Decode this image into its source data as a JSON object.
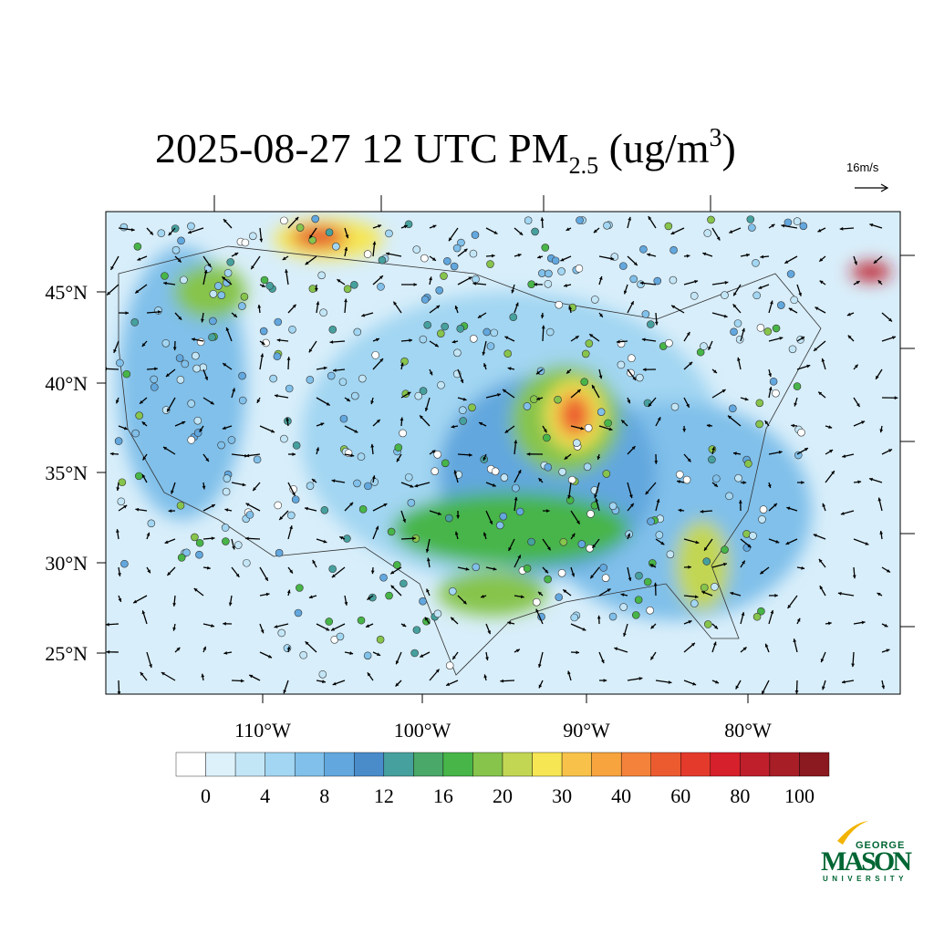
{
  "title": {
    "main": "2025-08-27 12 UTC PM",
    "sub": "2.5",
    "unit_open": " (ug/m",
    "sup": "3",
    "unit_close": ")"
  },
  "wind_scale": "16m/s",
  "lat_labels": [
    "45°N",
    "40°N",
    "35°N",
    "30°N",
    "25°N"
  ],
  "lon_labels": [
    "110°W",
    "100°W",
    "90°W",
    "80°W"
  ],
  "colorbar": {
    "colors": [
      "#ffffff",
      "#ddf1fb",
      "#c3e6f7",
      "#a2d6f2",
      "#80c0ea",
      "#62a7de",
      "#4a8cca",
      "#46a09e",
      "#4aa868",
      "#47b548",
      "#86c44c",
      "#c2d653",
      "#f6e653",
      "#f8c24a",
      "#f7a33e",
      "#f4823a",
      "#ec5b2f",
      "#e43a2c",
      "#d6202b",
      "#bf1f2b",
      "#a71e27",
      "#8a1a1f"
    ],
    "labels": [
      0,
      4,
      8,
      12,
      16,
      20,
      30,
      40,
      60,
      80,
      100
    ]
  },
  "logo": {
    "top": "GEORGE",
    "name": "MASON",
    "bottom": "UNIVERSITY"
  }
}
